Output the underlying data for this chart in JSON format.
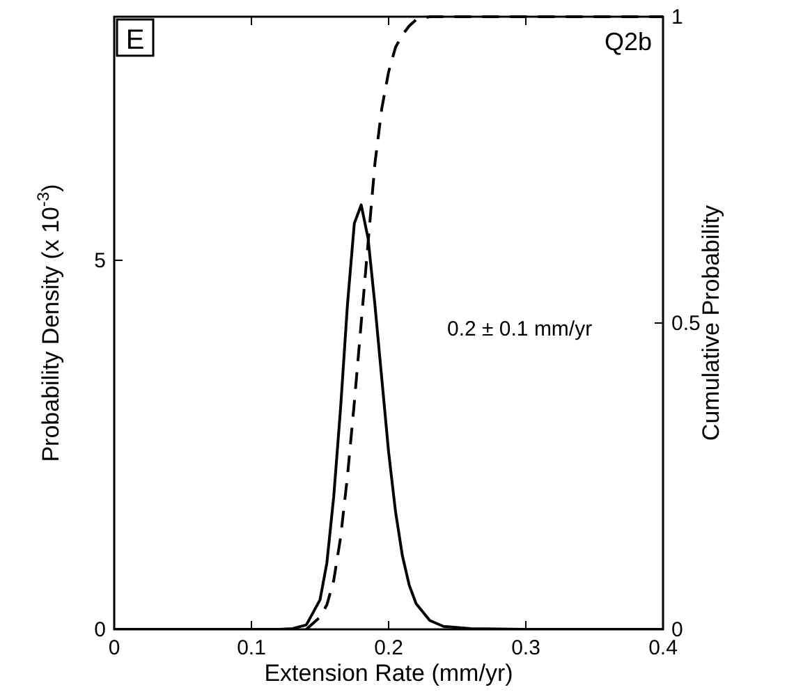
{
  "chart_data": {
    "type": "line",
    "xlabel": "Extension Rate (mm/yr)",
    "ylabel": "Probability Density (x 10$^{-3}$)",
    "y2label": "Cumulative Probability",
    "annotations": [
      "E",
      "Q2b",
      "0.2 ± 0.1 mm/yr"
    ],
    "xlim": [
      0,
      0.4
    ],
    "xticks": [
      0,
      0.1,
      0.2,
      0.3,
      0.4
    ],
    "ylim": [
      0,
      8.3
    ],
    "yticks": [
      0,
      5
    ],
    "y2lim": [
      0,
      1
    ],
    "y2ticks": [
      0,
      0.5,
      1
    ],
    "grid": false,
    "series": [
      {
        "color": "#000000",
        "line_style": "solid",
        "x": [
          0,
          0.12,
          0.13,
          0.14,
          0.15,
          0.155,
          0.16,
          0.165,
          0.17,
          0.175,
          0.18,
          0.185,
          0.19,
          0.195,
          0.2,
          0.205,
          0.21,
          0.215,
          0.22,
          0.23,
          0.24,
          0.26,
          0.3,
          0.4
        ],
        "values": [
          0,
          0,
          0.01,
          0.06,
          0.4,
          0.9,
          1.8,
          3.0,
          4.4,
          5.5,
          5.75,
          5.3,
          4.4,
          3.4,
          2.4,
          1.6,
          1.0,
          0.6,
          0.35,
          0.12,
          0.04,
          0.01,
          0,
          0
        ]
      },
      {
        "color": "#000000",
        "line_style": "dashed",
        "axis": "y2",
        "x": [
          0.14,
          0.15,
          0.155,
          0.16,
          0.165,
          0.17,
          0.175,
          0.18,
          0.185,
          0.19,
          0.195,
          0.2,
          0.205,
          0.21,
          0.215,
          0.22,
          0.23,
          0.26,
          0.4
        ],
        "values": [
          0,
          0.02,
          0.04,
          0.08,
          0.15,
          0.25,
          0.37,
          0.5,
          0.63,
          0.76,
          0.85,
          0.91,
          0.95,
          0.97,
          0.985,
          0.995,
          1,
          1,
          1
        ]
      }
    ]
  }
}
